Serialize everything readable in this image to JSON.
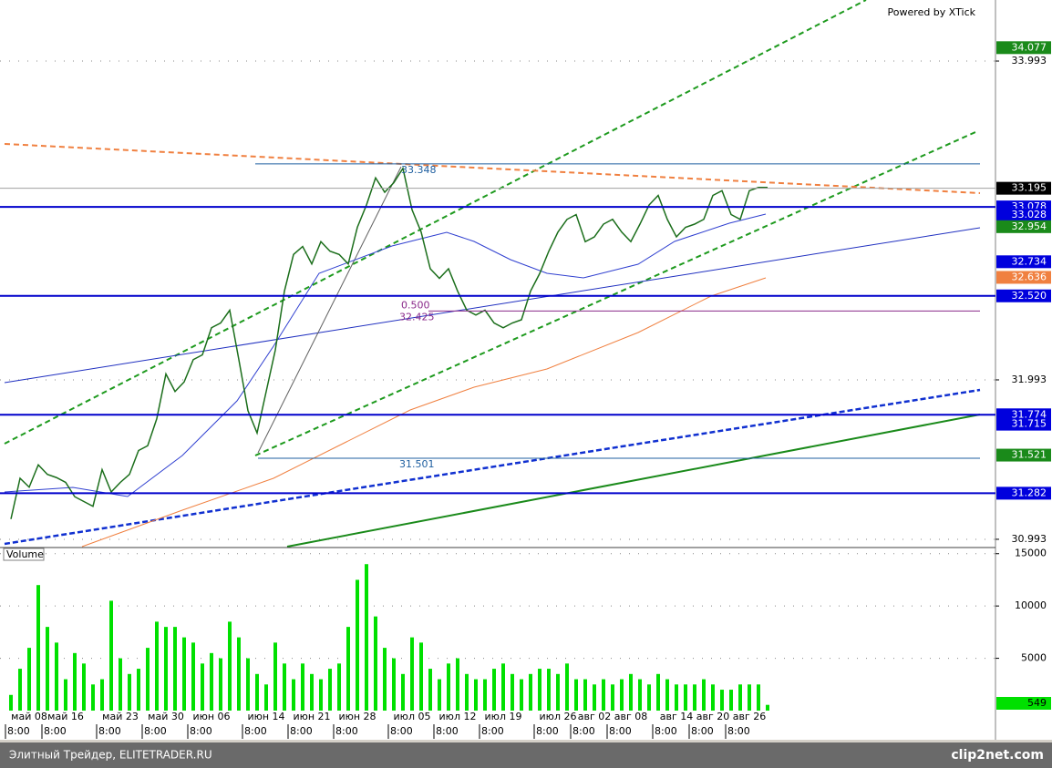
{
  "chart_data": [
    {
      "type": "line",
      "title": "Powered by XTick",
      "categories": [
        null,
        null,
        "май 08",
        null,
        null,
        null,
        "май 16",
        null,
        null,
        null,
        null,
        null,
        "май 23",
        null,
        null,
        null,
        null,
        "май 30",
        null,
        null,
        null,
        null,
        "июн 06",
        null,
        null,
        null,
        null,
        null,
        "июн 14",
        null,
        null,
        null,
        null,
        "июн 21",
        null,
        null,
        null,
        null,
        "июн 28",
        null,
        null,
        null,
        null,
        null,
        "июл 05",
        null,
        null,
        null,
        null,
        "июл 12",
        null,
        null,
        null,
        null,
        "июл 19",
        null,
        null,
        null,
        null,
        null,
        "июл 26",
        null,
        null,
        null,
        "авг 02",
        null,
        null,
        null,
        "авг 08",
        null,
        null,
        null,
        null,
        "авг 14",
        null,
        null,
        null,
        "авг 20",
        null,
        null,
        null,
        "авг 26",
        null,
        null
      ],
      "time_label": "8:00",
      "values": [
        31.12,
        31.376,
        31.32,
        31.46,
        31.4,
        31.38,
        31.35,
        31.26,
        31.23,
        31.2,
        31.43,
        31.29,
        31.35,
        31.4,
        31.55,
        31.58,
        31.75,
        32.03,
        31.92,
        31.98,
        32.12,
        32.15,
        32.32,
        32.35,
        32.43,
        32.12,
        31.8,
        31.66,
        31.92,
        32.18,
        32.55,
        32.78,
        32.83,
        32.72,
        32.86,
        32.8,
        32.78,
        32.72,
        32.95,
        33.09,
        33.26,
        33.17,
        33.23,
        33.32,
        33.06,
        32.92,
        32.69,
        32.63,
        32.69,
        32.55,
        32.43,
        32.4,
        32.43,
        32.35,
        32.32,
        32.35,
        32.37,
        32.55,
        32.66,
        32.8,
        32.92,
        33.0,
        33.03,
        32.86,
        32.89,
        32.97,
        33.0,
        32.92,
        32.86,
        32.97,
        33.09,
        33.15,
        33.0,
        32.89,
        32.95,
        32.97,
        33.0,
        33.15,
        33.18,
        33.03,
        33.0,
        33.18,
        33.2,
        33.2
      ],
      "color": "#1b6e1b",
      "ylim": [
        30.947,
        34.376
      ],
      "yticks": [
        30.993,
        31.993,
        33.993
      ],
      "grid": true,
      "price_markers": [
        {
          "value": 34.077,
          "label": "34.077",
          "color": "#1a8a1a"
        },
        {
          "value": 33.195,
          "label": "33.195",
          "color": "#000000",
          "hline": "#a0a0a0"
        },
        {
          "value": 33.078,
          "label": "33.078",
          "color": "#0000dd",
          "hline": "#0000cc"
        },
        {
          "value": 33.028,
          "label": "33.028",
          "color": "#0000dd"
        },
        {
          "value": 32.954,
          "label": "32.954",
          "color": "#1a8a1a"
        },
        {
          "value": 32.734,
          "label": "32.734",
          "color": "#0000dd"
        },
        {
          "value": 32.636,
          "label": "32.636",
          "color": "#f08040"
        },
        {
          "value": 32.52,
          "label": "32.520",
          "color": "#0000dd",
          "hline": "#0000cc"
        },
        {
          "value": 31.774,
          "label": "31.774",
          "color": "#0000dd",
          "hline": "#0000cc"
        },
        {
          "value": 31.715,
          "label": "31.715",
          "color": "#0000dd"
        },
        {
          "value": 31.521,
          "label": "31.521",
          "color": "#1a8a1a"
        },
        {
          "value": 31.282,
          "label": "31.282",
          "color": "#0000dd",
          "hline": "#0000cc"
        }
      ],
      "annotations": [
        {
          "value": 33.348,
          "label": "33.348",
          "color": "#1f5fa0"
        },
        {
          "value": 32.425,
          "label": "32.425",
          "color": "#8a2a8a"
        },
        {
          "value": 31.501,
          "label": "31.501",
          "color": "#1f5fa0"
        }
      ],
      "fib_label": "0.500"
    },
    {
      "type": "bar",
      "title": "Volume",
      "values": [
        1500,
        4000,
        6000,
        12000,
        8000,
        6500,
        3000,
        5500,
        4500,
        2500,
        3000,
        10500,
        5000,
        3500,
        4000,
        6000,
        8500,
        8000,
        8000,
        7000,
        6500,
        4500,
        5500,
        5000,
        8500,
        7000,
        5000,
        3500,
        2500,
        6500,
        4500,
        3000,
        4500,
        3500,
        3000,
        4000,
        4500,
        8000,
        12500,
        14000,
        9000,
        6000,
        5000,
        3500,
        7000,
        6500,
        4000,
        3000,
        4500,
        5000,
        3500,
        3000,
        3000,
        4000,
        4500,
        3500,
        3000,
        3500,
        4000,
        4000,
        3500,
        4500,
        3000,
        3000,
        2500,
        3000,
        2500,
        3000,
        3500,
        3000,
        2500,
        3500,
        3000,
        2500,
        2500,
        2500,
        3000,
        2500,
        2000,
        2000,
        2500,
        2500,
        2500,
        549
      ],
      "color": "#00e000",
      "ylim": [
        0,
        15500
      ],
      "yticks": [
        5000,
        10000,
        15000
      ],
      "grid": true
    }
  ],
  "footer": {
    "left": "Элитный Трейдер, ELITETRADER.RU",
    "right": "clip2net.com"
  }
}
